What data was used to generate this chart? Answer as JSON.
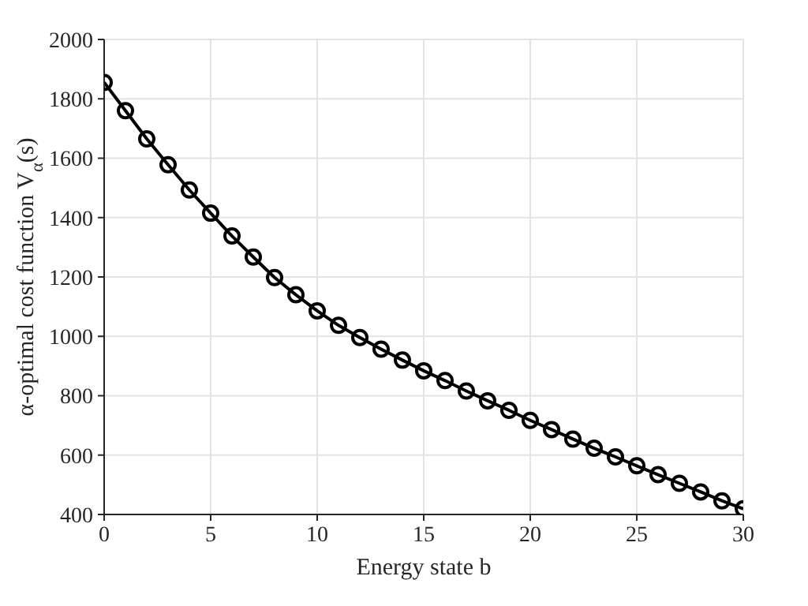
{
  "chart_data": {
    "type": "line",
    "xlabel": "Energy state b",
    "ylabel": "α-optimal cost function V$_{α}$(s)",
    "x": [
      0,
      1,
      2,
      3,
      4,
      5,
      6,
      7,
      8,
      9,
      10,
      11,
      12,
      13,
      14,
      15,
      16,
      17,
      18,
      19,
      20,
      21,
      22,
      23,
      24,
      25,
      26,
      27,
      28,
      29,
      30
    ],
    "series": [
      {
        "color": "#000000",
        "values": [
          1855,
          1760,
          1665,
          1578,
          1493,
          1415,
          1338,
          1267,
          1198,
          1140,
          1086,
          1037,
          996,
          957,
          920,
          884,
          851,
          816,
          783,
          751,
          717,
          686,
          654,
          623,
          594,
          564,
          534,
          505,
          476,
          446,
          419
        ]
      }
    ],
    "xlim": [
      0,
      30
    ],
    "xticks": [
      0,
      5,
      10,
      15,
      20,
      25,
      30
    ],
    "ylim": [
      400,
      2000
    ],
    "yticks": [
      400,
      600,
      800,
      1000,
      1200,
      1400,
      1600,
      1800,
      2000
    ],
    "grid": true,
    "marker": "circle",
    "line_style": "solid"
  }
}
